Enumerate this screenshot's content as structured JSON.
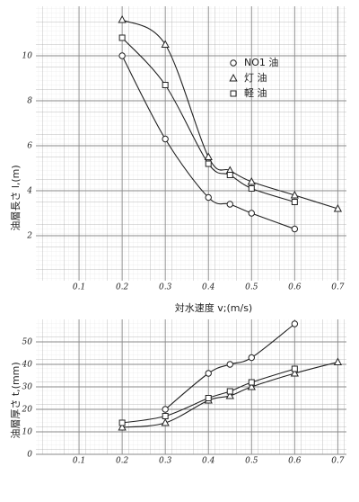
{
  "chart_data": [
    {
      "type": "line",
      "y_label": "油層長さ l,(m)",
      "x_label": "対水速度 v;(m/s)",
      "xlim": [
        0,
        0.72
      ],
      "ylim": [
        0,
        12.2
      ],
      "xticks": [
        0.1,
        0.2,
        0.3,
        0.4,
        0.5,
        0.6,
        0.7
      ],
      "yticks": [
        2,
        4,
        6,
        8,
        10
      ],
      "series": [
        {
          "name": "NO1 油",
          "marker": "circle",
          "color": "#222",
          "x": [
            0.2,
            0.3,
            0.4,
            0.45,
            0.5,
            0.6
          ],
          "values": [
            10.0,
            6.3,
            3.7,
            3.4,
            3.0,
            2.3
          ]
        },
        {
          "name": "灯 油",
          "marker": "triangle",
          "color": "#222",
          "x": [
            0.2,
            0.3,
            0.4,
            0.45,
            0.5,
            0.6,
            0.7
          ],
          "values": [
            11.6,
            10.5,
            5.5,
            4.9,
            4.4,
            3.8,
            3.2
          ]
        },
        {
          "name": "軽 油",
          "marker": "square",
          "color": "#222",
          "x": [
            0.2,
            0.3,
            0.4,
            0.45,
            0.5,
            0.6
          ],
          "values": [
            10.8,
            8.7,
            5.2,
            4.7,
            4.1,
            3.5
          ]
        }
      ]
    },
    {
      "type": "line",
      "y_label": "油層厚さ t,(mm)",
      "xlim": [
        0,
        0.72
      ],
      "ylim": [
        0,
        60
      ],
      "xticks": [
        0.1,
        0.2,
        0.3,
        0.4,
        0.5,
        0.6,
        0.7
      ],
      "yticks": [
        0,
        10,
        20,
        30,
        40,
        50
      ],
      "series": [
        {
          "marker": "circle",
          "color": "#222",
          "x": [
            0.3,
            0.4,
            0.45,
            0.5,
            0.6
          ],
          "values": [
            20,
            36,
            40,
            43,
            58
          ]
        },
        {
          "marker": "triangle",
          "color": "#222",
          "x": [
            0.2,
            0.3,
            0.4,
            0.45,
            0.5,
            0.6,
            0.7
          ],
          "values": [
            12,
            14,
            24,
            26,
            30,
            36,
            41
          ]
        },
        {
          "marker": "square",
          "color": "#222",
          "x": [
            0.2,
            0.3,
            0.4,
            0.45,
            0.5,
            0.6
          ],
          "values": [
            14,
            17,
            25,
            28,
            32,
            38
          ]
        }
      ]
    }
  ]
}
